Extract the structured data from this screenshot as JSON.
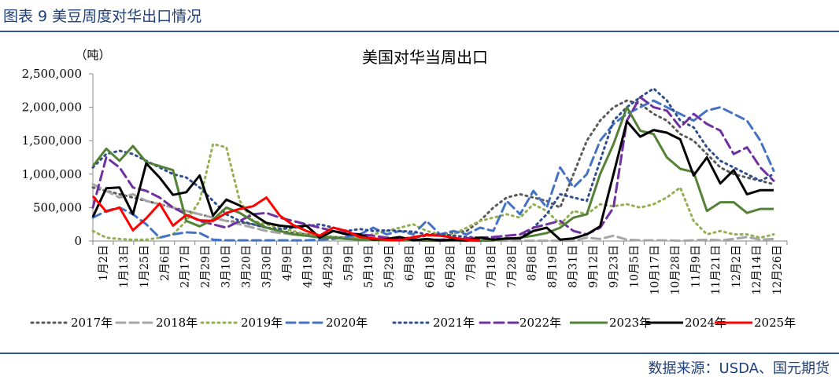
{
  "header": {
    "title": "图表 9 美豆周度对华出口情况"
  },
  "footer": {
    "source": "数据来源：USDA、国元期货"
  },
  "colors": {
    "rule": "#2f5597",
    "header_text": "#1f3f7a"
  },
  "chart_data": {
    "type": "line",
    "title": "美国对华当周出口",
    "unit_label": "（吨）",
    "ylim": [
      0,
      2500000
    ],
    "yticks": [
      0,
      500000,
      1000000,
      1500000,
      2000000,
      2500000
    ],
    "ytick_labels": [
      "0",
      "500,000",
      "1,000,000",
      "1,500,000",
      "2,000,000",
      "2,500,000"
    ],
    "x_labels": [
      "1月2日",
      "1月13日",
      "1月25日",
      "2月6日",
      "2月17日",
      "2月29日",
      "3月10日",
      "3月20日",
      "3月30日",
      "4月9日",
      "4月19日",
      "4月29日",
      "5月9日",
      "5月19日",
      "5月29日",
      "6月8日",
      "6月18日",
      "6月28日",
      "7月8日",
      "7月18日",
      "7月28日",
      "8月8日",
      "8月19日",
      "8月31日",
      "9月12日",
      "9月23日",
      "10月5日",
      "10月17日",
      "10月28日",
      "11月9日",
      "11月21日",
      "12月2日",
      "12月14日",
      "12月26日"
    ],
    "x_domain": [
      0,
      52
    ],
    "legend_position": "bottom",
    "series": [
      {
        "name": "2017年",
        "color": "#595959",
        "dash": "2 5",
        "width": 3,
        "values": [
          800000,
          750000,
          700000,
          650000,
          600000,
          550000,
          500000,
          450000,
          400000,
          350000,
          300000,
          280000,
          250000,
          200000,
          150000,
          120000,
          100000,
          80000,
          60000,
          50000,
          40000,
          40000,
          30000,
          40000,
          50000,
          80000,
          100000,
          120000,
          150000,
          300000,
          500000,
          650000,
          700000,
          650000,
          600000,
          500000,
          1000000,
          1500000,
          1800000,
          2000000,
          2100000,
          2050000,
          1900000,
          1800000,
          1600000,
          1500000,
          1300000,
          1100000,
          1000000,
          950000,
          900000,
          850000
        ]
      },
      {
        "name": "2018年",
        "color": "#a6a6a6",
        "dash": "11 6",
        "width": 3,
        "values": [
          850000,
          750000,
          650000,
          700000,
          600000,
          550000,
          500000,
          450000,
          400000,
          350000,
          300000,
          250000,
          200000,
          150000,
          120000,
          100000,
          80000,
          60000,
          50000,
          40000,
          30000,
          30000,
          20000,
          20000,
          10000,
          10000,
          10000,
          10000,
          5000,
          5000,
          5000,
          5000,
          5000,
          5000,
          5000,
          5000,
          5000,
          50000,
          30000,
          80000,
          20000,
          10000,
          10000,
          10000,
          5000,
          10000,
          20000,
          10000,
          30000,
          60000,
          20000,
          30000
        ]
      },
      {
        "name": "2019年",
        "color": "#92b050",
        "dash": "2 5",
        "width": 3,
        "values": [
          150000,
          50000,
          30000,
          20000,
          20000,
          50000,
          100000,
          300000,
          600000,
          1450000,
          1400000,
          600000,
          300000,
          250000,
          200000,
          150000,
          100000,
          80000,
          60000,
          50000,
          60000,
          100000,
          150000,
          200000,
          250000,
          150000,
          100000,
          100000,
          200000,
          300000,
          350000,
          400000,
          350000,
          550000,
          450000,
          250000,
          450000,
          400000,
          550000,
          520000,
          550000,
          500000,
          550000,
          650000,
          800000,
          300000,
          100000,
          150000,
          100000,
          100000,
          50000,
          100000
        ]
      },
      {
        "name": "2020年",
        "color": "#4472c4",
        "dash": "11 6",
        "width": 3,
        "values": [
          350000,
          450000,
          500000,
          400000,
          250000,
          50000,
          100000,
          130000,
          120000,
          20000,
          10000,
          10000,
          10000,
          10000,
          10000,
          10000,
          10000,
          20000,
          30000,
          60000,
          100000,
          200000,
          100000,
          150000,
          100000,
          300000,
          100000,
          150000,
          100000,
          200000,
          150000,
          600000,
          400000,
          750000,
          500000,
          1100000,
          800000,
          1000000,
          1500000,
          1750000,
          1900000,
          2000000,
          2100000,
          2000000,
          1900000,
          1800000,
          1950000,
          2000000,
          1900000,
          1800000,
          1500000,
          1050000
        ]
      },
      {
        "name": "2021年",
        "color": "#2e4e8f",
        "dash": "2 5",
        "width": 3,
        "values": [
          1100000,
          1300000,
          1350000,
          1300000,
          1200000,
          1100000,
          1000000,
          950000,
          800000,
          600000,
          400000,
          300000,
          250000,
          200000,
          180000,
          200000,
          220000,
          250000,
          200000,
          150000,
          180000,
          150000,
          160000,
          150000,
          140000,
          100000,
          100000,
          80000,
          60000,
          50000,
          40000,
          30000,
          40000,
          200000,
          400000,
          700000,
          650000,
          600000,
          1200000,
          1800000,
          2000000,
          2150000,
          2280000,
          2100000,
          1800000,
          1700000,
          1400000,
          1200000,
          1100000,
          1000000,
          900000,
          1000000
        ]
      },
      {
        "name": "2022年",
        "color": "#7030a0",
        "dash": "12 6",
        "width": 3,
        "values": [
          500000,
          1250000,
          1100000,
          800000,
          750000,
          650000,
          500000,
          400000,
          300000,
          250000,
          200000,
          300000,
          400000,
          420000,
          350000,
          300000,
          250000,
          200000,
          150000,
          120000,
          100000,
          80000,
          50000,
          40000,
          30000,
          20000,
          20000,
          30000,
          40000,
          50000,
          60000,
          80000,
          100000,
          200000,
          250000,
          300000,
          150000,
          100000,
          200000,
          500000,
          1800000,
          2150000,
          2000000,
          1950000,
          1700000,
          1900000,
          1750000,
          1650000,
          1300000,
          1400000,
          1100000,
          900000
        ]
      },
      {
        "name": "2023年",
        "color": "#538135",
        "dash": "",
        "width": 3,
        "values": [
          1120000,
          1380000,
          1200000,
          1420000,
          1180000,
          1120000,
          1060000,
          300000,
          220000,
          320000,
          500000,
          420000,
          300000,
          200000,
          150000,
          100000,
          80000,
          50000,
          50000,
          30000,
          20000,
          20000,
          10000,
          10000,
          10000,
          5000,
          5000,
          5000,
          5000,
          5000,
          10000,
          30000,
          50000,
          80000,
          120000,
          200000,
          350000,
          400000,
          1000000,
          1450000,
          2000000,
          1650000,
          1600000,
          1250000,
          1080000,
          1030000,
          450000,
          580000,
          580000,
          420000,
          480000,
          480000
        ]
      },
      {
        "name": "2024年",
        "color": "#000000",
        "dash": "",
        "width": 3,
        "values": [
          360000,
          790000,
          800000,
          400000,
          1160000,
          950000,
          690000,
          730000,
          980000,
          380000,
          620000,
          530000,
          400000,
          270000,
          230000,
          210000,
          230000,
          50000,
          150000,
          100000,
          100000,
          20000,
          30000,
          60000,
          10000,
          30000,
          10000,
          20000,
          10000,
          50000,
          20000,
          40000,
          40000,
          150000,
          200000,
          20000,
          40000,
          100000,
          220000,
          1000000,
          1790000,
          1560000,
          1660000,
          1620000,
          1520000,
          980000,
          1250000,
          860000,
          1060000,
          700000,
          760000,
          760000
        ]
      },
      {
        "name": "2025年",
        "color": "#ff0000",
        "dash": "",
        "width": 3,
        "values": [
          670000,
          440000,
          500000,
          160000,
          340000,
          560000,
          230000,
          390000,
          310000,
          300000,
          420000,
          480000,
          520000,
          650000,
          380000,
          240000,
          150000,
          80000,
          200000,
          150000,
          60000,
          40000,
          20000,
          10000,
          60000,
          90000,
          80000,
          50000,
          20000,
          10000
        ]
      }
    ]
  }
}
